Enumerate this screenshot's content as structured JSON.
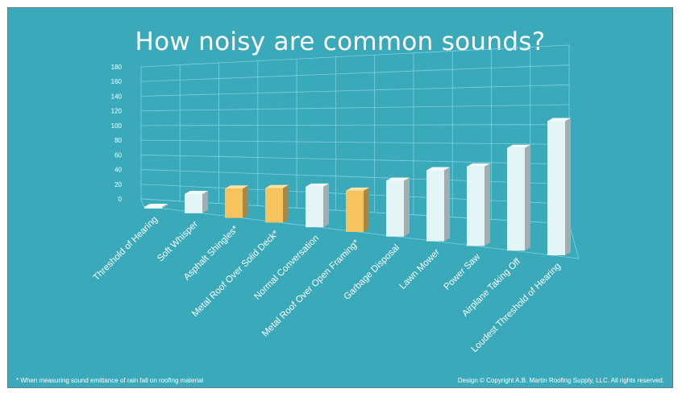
{
  "chart_data": {
    "type": "bar",
    "title": "How noisy are common sounds?",
    "categories": [
      "Threshold of Hearing",
      "Soft Whisper",
      "Asphalt Shingles*",
      "Metal Roof Over Solid Deck*",
      "Normal Conversation",
      "Metal Roof Over Open Framing*",
      "Garbage Disposal",
      "Lawn Mower",
      "Power Saw",
      "Airplane Taking Off",
      "Loudest Threshold of Hearing"
    ],
    "values": [
      0,
      30,
      45,
      52,
      60,
      60,
      80,
      100,
      110,
      140,
      180
    ],
    "highlighted": [
      false,
      false,
      true,
      true,
      false,
      true,
      false,
      false,
      false,
      false,
      false
    ],
    "ylim": [
      0,
      180
    ],
    "yticks": [
      "0",
      "20",
      "40",
      "60",
      "80",
      "100",
      "120",
      "140",
      "160",
      "180"
    ],
    "grid": true,
    "xlabel": "",
    "ylabel": ""
  },
  "colors": {
    "background": "#3aa9ba",
    "bar_default_front": "#e4f5f8",
    "bar_default_side": "#a3acae",
    "bar_default_top": "#f4fbfc",
    "bar_highlight_front": "#f6c35c",
    "bar_highlight_side": "#a7884a",
    "bar_highlight_top": "#fce3a6",
    "grid": "#7fd0dc"
  },
  "footnote": "* When measuring sound emittance of rain fall on roofing material",
  "copyright": "Design © Copyright A.B. Martin Roofing Supply, LLC.  All rights reserved."
}
